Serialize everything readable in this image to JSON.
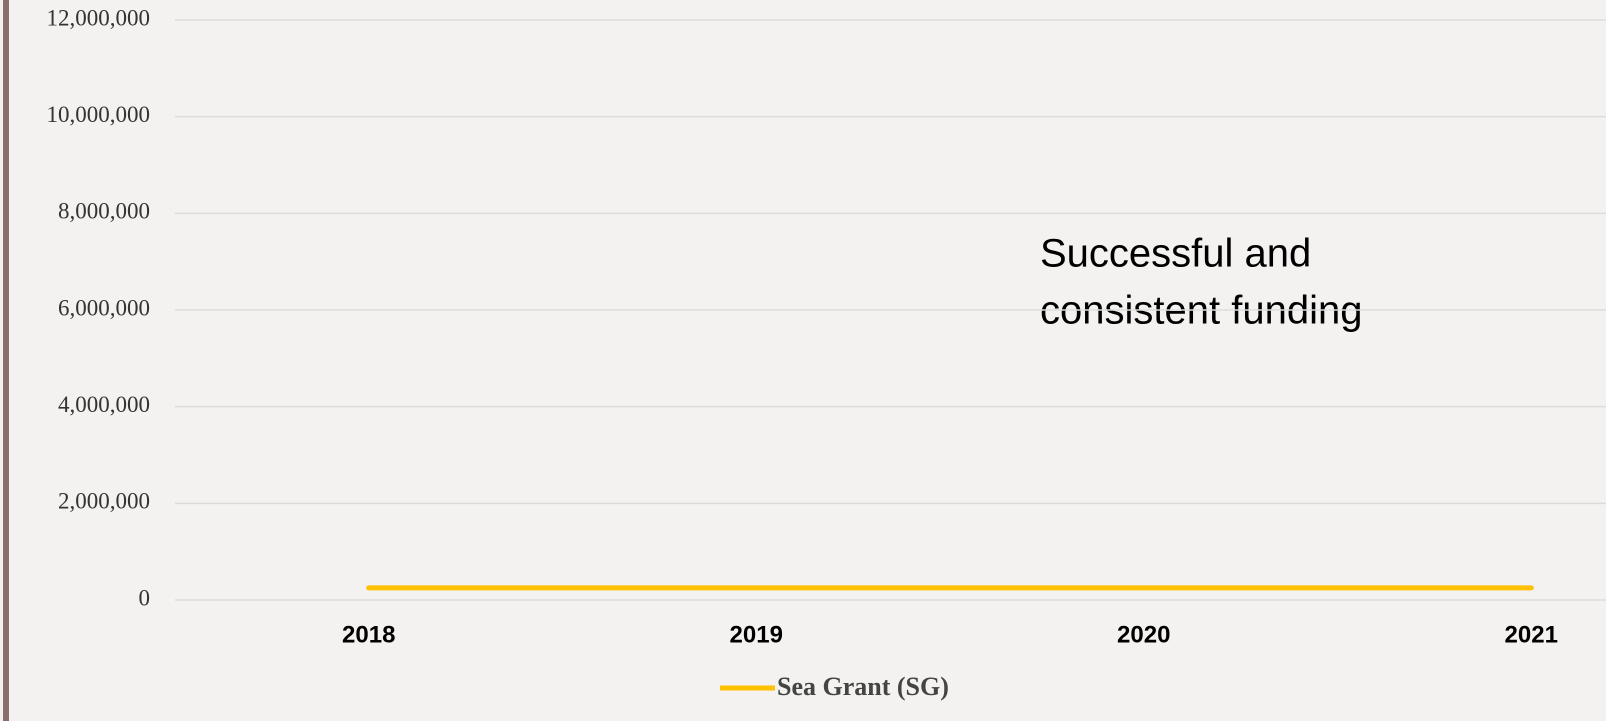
{
  "chart_data": {
    "type": "line",
    "categories": [
      "2018",
      "2019",
      "2020",
      "2021"
    ],
    "series": [
      {
        "name": "Sea Grant (SG)",
        "color": "#ffc000",
        "values": [
          250000,
          250000,
          250000,
          250000
        ]
      }
    ],
    "ylim": [
      0,
      12000000
    ],
    "yticks": [
      0,
      {
        "value": 2000000,
        "label": "2,000,000"
      },
      {
        "value": 4000000,
        "label": "4,000,000"
      },
      {
        "value": 6000000,
        "label": "6,000,000"
      },
      {
        "value": 8000000,
        "label": "8,000,000"
      },
      {
        "value": 10000000,
        "label": "10,000,000"
      },
      {
        "value": 12000000,
        "label": "12,000,000"
      }
    ],
    "grid": true,
    "legend": "bottom",
    "annotation": [
      "Successful and",
      "consistent funding"
    ]
  }
}
